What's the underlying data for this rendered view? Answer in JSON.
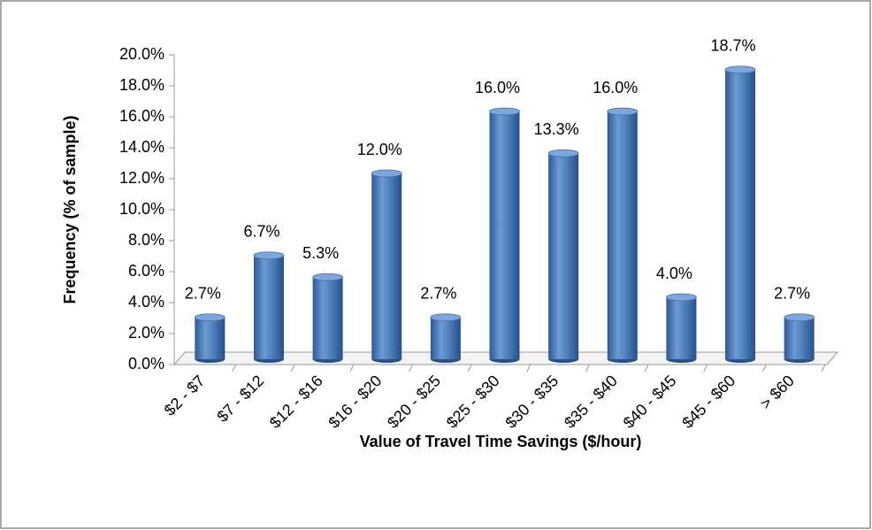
{
  "chart_data": {
    "type": "bar",
    "x_label": "Value of Travel Time Savings ($/hour)",
    "y_label": "Frequency (% of sample)",
    "categories": [
      "$2 - $7",
      "$7 - $12",
      "$12 - $16",
      "$16 - $20",
      "$20 - $25",
      "$25 - $30",
      "$30 - $35",
      "$35 - $40",
      "$40 - $45",
      "$45 - $60",
      "> $60"
    ],
    "values": [
      2.7,
      6.7,
      5.3,
      12.0,
      2.7,
      16.0,
      13.3,
      16.0,
      4.0,
      18.7,
      2.7
    ],
    "value_labels": [
      "2.7%",
      "6.7%",
      "5.3%",
      "12.0%",
      "2.7%",
      "16.0%",
      "13.3%",
      "16.0%",
      "4.0%",
      "18.7%",
      "2.7%"
    ],
    "color": "#4f81bd",
    "ylim": [
      0,
      20
    ],
    "yticks": [
      {
        "value": 0,
        "label": "0.0%"
      },
      {
        "value": 2,
        "label": "2.0%"
      },
      {
        "value": 4,
        "label": "4.0%"
      },
      {
        "value": 6,
        "label": "6.0%"
      },
      {
        "value": 8,
        "label": "8.0%"
      },
      {
        "value": 10,
        "label": "10.0%"
      },
      {
        "value": 12,
        "label": "12.0%"
      },
      {
        "value": 14,
        "label": "14.0%"
      },
      {
        "value": 16,
        "label": "16.0%"
      },
      {
        "value": 18,
        "label": "18.0%"
      },
      {
        "value": 20,
        "label": "20.0%"
      }
    ]
  }
}
